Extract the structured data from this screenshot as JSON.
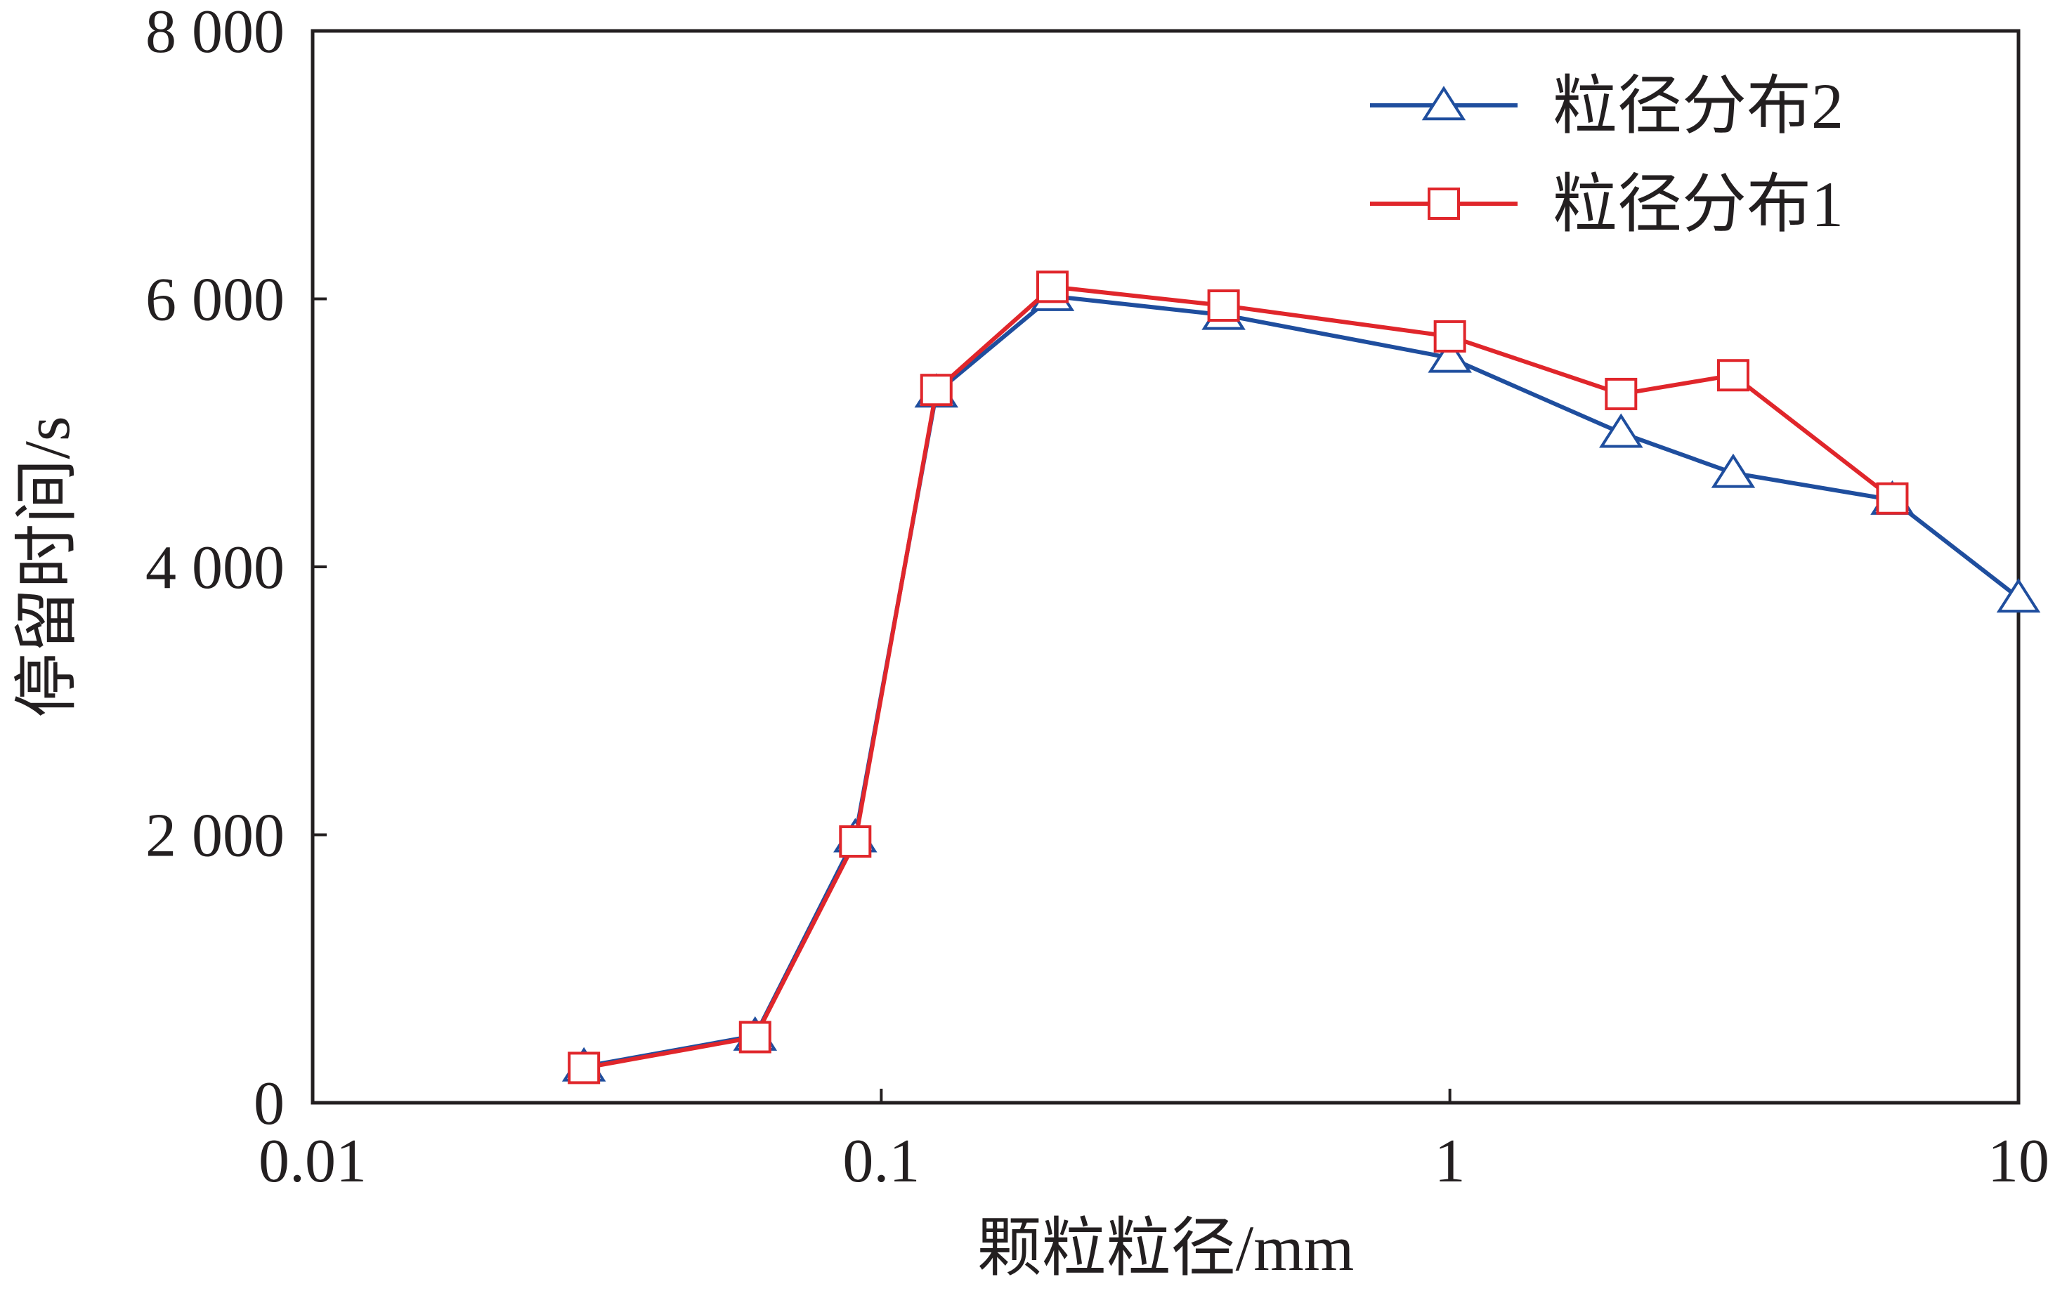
{
  "chart_data": {
    "type": "line",
    "xscale": "log",
    "xlabel": "颗粒粒径/mm",
    "ylabel": "停留时间/s",
    "xlim": [
      0.01,
      10
    ],
    "ylim": [
      0,
      8000
    ],
    "xticks": [
      {
        "value": 0.01,
        "label": "0.01"
      },
      {
        "value": 0.1,
        "label": "0.1"
      },
      {
        "value": 1,
        "label": "1"
      },
      {
        "value": 10,
        "label": "10"
      }
    ],
    "yticks": [
      {
        "value": 0,
        "label": "0"
      },
      {
        "value": 2000,
        "label": "2 000"
      },
      {
        "value": 4000,
        "label": "4 000"
      },
      {
        "value": 6000,
        "label": "6 000"
      },
      {
        "value": 8000,
        "label": "8 000"
      }
    ],
    "legend_position": "top-right",
    "series": [
      {
        "name": "粒径分布2",
        "color": "#1f4e9e",
        "marker": "triangle",
        "x": [
          0.03,
          0.06,
          0.09,
          0.125,
          0.2,
          0.4,
          1,
          2,
          3.15,
          6,
          10
        ],
        "y": [
          270,
          500,
          1980,
          5300,
          6020,
          5880,
          5560,
          5000,
          4700,
          4500,
          3770
        ]
      },
      {
        "name": "粒径分布1",
        "color": "#e0262b",
        "marker": "square",
        "x": [
          0.03,
          0.06,
          0.09,
          0.125,
          0.2,
          0.4,
          1,
          2,
          3.15,
          6
        ],
        "y": [
          260,
          490,
          1950,
          5320,
          6090,
          5950,
          5720,
          5290,
          5430,
          4510
        ]
      }
    ]
  }
}
